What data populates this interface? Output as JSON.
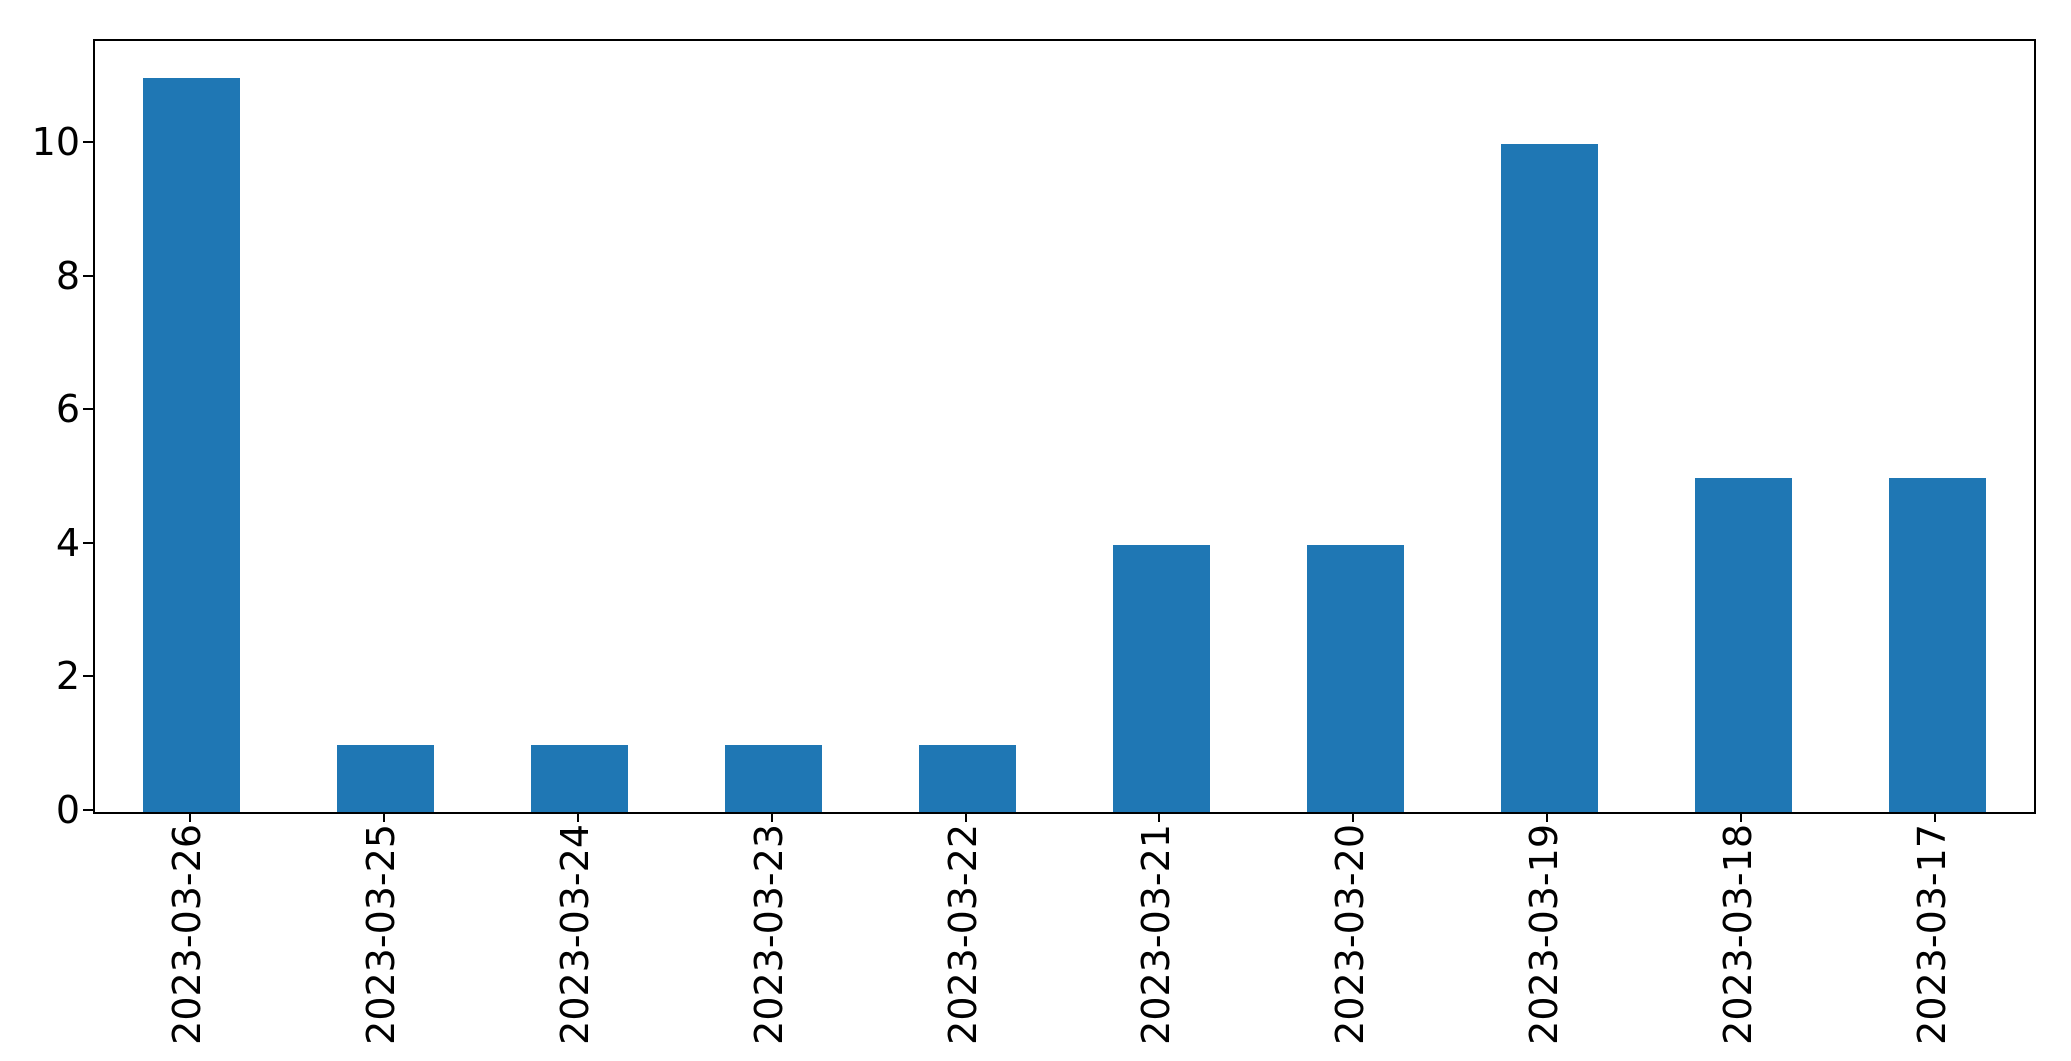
{
  "chart_data": {
    "type": "bar",
    "categories": [
      "2023-03-26",
      "2023-03-25",
      "2023-03-24",
      "2023-03-23",
      "2023-03-22",
      "2023-03-21",
      "2023-03-20",
      "2023-03-19",
      "2023-03-18",
      "2023-03-17"
    ],
    "values": [
      11,
      1,
      1,
      1,
      1,
      4,
      4,
      10,
      5,
      5
    ],
    "title": "",
    "xlabel": "",
    "ylabel": "",
    "ylim": [
      0,
      11.55
    ],
    "yticks": [
      0,
      2,
      4,
      6,
      8,
      10
    ],
    "x_tick_rotation": 90,
    "grid": false,
    "legend": null,
    "bar_color": "#1f77b4",
    "axis_color": "#000000",
    "background_color": "#ffffff",
    "bar_width_fraction": 0.5
  }
}
